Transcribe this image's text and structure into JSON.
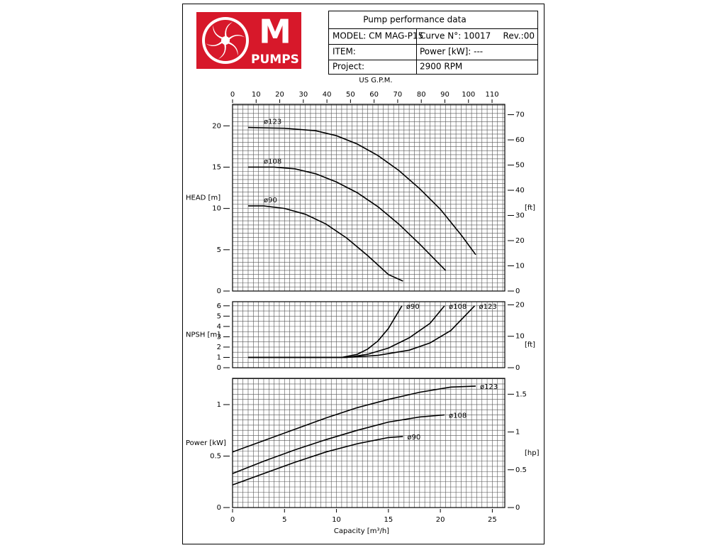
{
  "header": {
    "logo_letter": "M",
    "logo_text": "PUMPS",
    "title": "Pump performance data",
    "model": "MODEL: CM MAG-P15",
    "curve": "Curve N°: 10017",
    "rev": "Rev.:00",
    "item": "ITEM:",
    "power": "Power [kW]: ---",
    "project": "Project:",
    "rpm": "2900 RPM"
  },
  "chart_data": [
    {
      "type": "line",
      "ylabel": "HEAD [m]",
      "y2label": "[ft]",
      "x2label": "US G.P.M.",
      "xlim": [
        0,
        26.2
      ],
      "ylim": [
        0,
        22.6
      ],
      "yticks": [
        0,
        5,
        10,
        15,
        20
      ],
      "y2lim": [
        0,
        74.1
      ],
      "y2ticks": [
        0,
        10,
        20,
        30,
        40,
        50,
        60,
        70
      ],
      "x2lim": [
        0,
        115.4
      ],
      "x2ticks": [
        0,
        10,
        20,
        30,
        40,
        50,
        60,
        70,
        80,
        90,
        100,
        110
      ],
      "grid": true,
      "series": [
        {
          "name": "ø123",
          "color": "#000000",
          "x": [
            1.5,
            5,
            8,
            10,
            12,
            14,
            16,
            18,
            20,
            22,
            23.4
          ],
          "values": [
            19.8,
            19.7,
            19.4,
            18.8,
            17.8,
            16.4,
            14.6,
            12.4,
            9.9,
            6.8,
            4.4
          ]
        },
        {
          "name": "ø108",
          "color": "#000000",
          "x": [
            1.5,
            4,
            6,
            8,
            10,
            12,
            14,
            16,
            18,
            20.5
          ],
          "values": [
            15,
            15,
            14.8,
            14.2,
            13.2,
            11.9,
            10.2,
            8.1,
            5.7,
            2.5
          ]
        },
        {
          "name": "ø90",
          "color": "#000000",
          "x": [
            1.5,
            3,
            5,
            7,
            9,
            11,
            13,
            15,
            16.4
          ],
          "values": [
            10.3,
            10.3,
            10,
            9.3,
            8.1,
            6.4,
            4.3,
            2.0,
            1.2
          ]
        }
      ]
    },
    {
      "type": "line",
      "ylabel": "NPSH [m]",
      "y2label": "[ft]",
      "xlim": [
        0,
        26.2
      ],
      "ylim": [
        0,
        6.4
      ],
      "yticks": [
        0,
        1,
        2,
        3,
        4,
        5,
        6
      ],
      "y2lim": [
        0,
        21
      ],
      "y2ticks": [
        0,
        10,
        20
      ],
      "grid": true,
      "series": [
        {
          "name": "ø90",
          "color": "#000000",
          "x": [
            1.5,
            10.5,
            12,
            13,
            14,
            15,
            16.3
          ],
          "values": [
            1,
            1,
            1.3,
            1.8,
            2.6,
            3.8,
            6
          ]
        },
        {
          "name": "ø108",
          "color": "#000000",
          "x": [
            1.5,
            11,
            13,
            15,
            17,
            19,
            20.4
          ],
          "values": [
            1,
            1,
            1.3,
            1.9,
            2.9,
            4.3,
            6
          ]
        },
        {
          "name": "ø123",
          "color": "#000000",
          "x": [
            1.5,
            11,
            14,
            17,
            19,
            21,
            23.3
          ],
          "values": [
            1,
            1,
            1.2,
            1.7,
            2.4,
            3.6,
            6
          ]
        }
      ]
    },
    {
      "type": "line",
      "ylabel": "Power [kW]",
      "y2label": "[hp]",
      "xlabel": "Capacity  [m³/h]",
      "xlim": [
        0,
        26.2
      ],
      "xticks": [
        0,
        5,
        10,
        15,
        20,
        25
      ],
      "ylim": [
        0,
        1.255
      ],
      "yticks": [
        0,
        0.5,
        1
      ],
      "y2lim": [
        0,
        1.71
      ],
      "y2ticks": [
        0,
        0.5,
        1,
        1.5
      ],
      "grid": true,
      "series": [
        {
          "name": "ø123",
          "color": "#000000",
          "x": [
            0,
            3,
            6,
            9,
            12,
            15,
            18,
            21,
            23.4
          ],
          "values": [
            0.54,
            0.65,
            0.76,
            0.87,
            0.97,
            1.05,
            1.12,
            1.17,
            1.18
          ]
        },
        {
          "name": "ø108",
          "color": "#000000",
          "x": [
            0,
            3,
            6,
            9,
            12,
            15,
            18,
            20.4
          ],
          "values": [
            0.33,
            0.45,
            0.56,
            0.66,
            0.75,
            0.83,
            0.88,
            0.9
          ]
        },
        {
          "name": "ø90",
          "color": "#000000",
          "x": [
            0,
            3,
            6,
            9,
            12,
            15,
            16.4
          ],
          "values": [
            0.22,
            0.33,
            0.44,
            0.54,
            0.62,
            0.68,
            0.69
          ]
        }
      ]
    }
  ]
}
